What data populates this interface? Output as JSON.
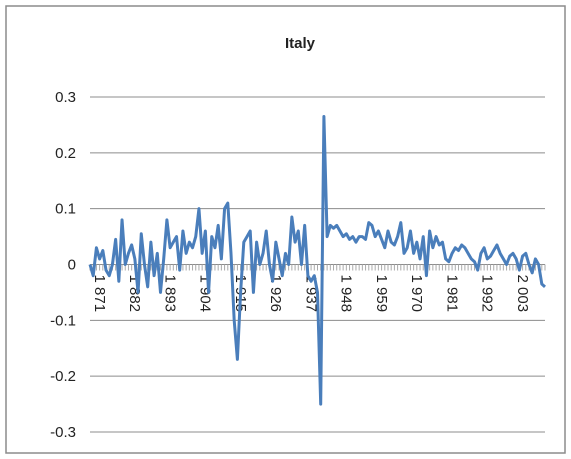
{
  "chart_data": {
    "type": "line",
    "title": "Italy",
    "categories": [
      "1 871",
      null,
      null,
      null,
      null,
      null,
      null,
      null,
      null,
      null,
      null,
      "1 882",
      null,
      null,
      null,
      null,
      null,
      null,
      null,
      null,
      null,
      null,
      "1 893",
      null,
      null,
      null,
      null,
      null,
      null,
      null,
      null,
      null,
      null,
      "1 904",
      null,
      null,
      null,
      null,
      null,
      null,
      null,
      null,
      null,
      null,
      "1 915",
      null,
      null,
      null,
      null,
      null,
      null,
      null,
      null,
      null,
      null,
      "1 926",
      null,
      null,
      null,
      null,
      null,
      null,
      null,
      null,
      null,
      null,
      "1 937",
      null,
      null,
      null,
      null,
      null,
      null,
      null,
      null,
      null,
      null,
      "1 948",
      null,
      null,
      null,
      null,
      null,
      null,
      null,
      null,
      null,
      null,
      "1 959",
      null,
      null,
      null,
      null,
      null,
      null,
      null,
      null,
      null,
      null,
      "1 970",
      null,
      null,
      null,
      null,
      null,
      null,
      null,
      null,
      null,
      null,
      "1 981",
      null,
      null,
      null,
      null,
      null,
      null,
      null,
      null,
      null,
      null,
      "1 992",
      null,
      null,
      null,
      null,
      null,
      null,
      null,
      null,
      null,
      null,
      "2 003",
      null,
      null,
      null,
      null,
      null,
      null,
      null,
      null,
      null,
      null
    ],
    "values": [
      0.0,
      -0.02,
      0.03,
      0.01,
      0.025,
      -0.01,
      -0.02,
      0.0,
      0.045,
      -0.03,
      0.08,
      0.0,
      0.02,
      0.035,
      0.01,
      -0.05,
      0.055,
      0.0,
      -0.04,
      0.04,
      -0.02,
      0.02,
      -0.05,
      0.01,
      0.08,
      0.03,
      0.04,
      0.05,
      -0.01,
      0.06,
      0.02,
      0.04,
      0.03,
      0.05,
      0.1,
      0.02,
      0.06,
      -0.05,
      0.05,
      0.03,
      0.07,
      0.01,
      0.1,
      0.11,
      0.02,
      -0.1,
      -0.17,
      -0.05,
      0.04,
      0.05,
      0.06,
      -0.05,
      0.04,
      0.0,
      0.02,
      0.06,
      0.0,
      -0.03,
      0.04,
      0.01,
      -0.02,
      0.02,
      0.0,
      0.085,
      0.04,
      0.06,
      0.0,
      0.07,
      -0.02,
      -0.03,
      -0.02,
      -0.05,
      -0.25,
      0.265,
      0.05,
      0.07,
      0.065,
      0.07,
      0.06,
      0.05,
      0.055,
      0.045,
      0.05,
      0.04,
      0.05,
      0.05,
      0.045,
      0.075,
      0.07,
      0.05,
      0.06,
      0.045,
      0.03,
      0.06,
      0.04,
      0.035,
      0.05,
      0.075,
      0.02,
      0.03,
      0.06,
      0.02,
      0.04,
      0.01,
      0.05,
      -0.02,
      0.06,
      0.03,
      0.05,
      0.035,
      0.04,
      0.01,
      0.005,
      0.02,
      0.03,
      0.025,
      0.035,
      0.03,
      0.02,
      0.01,
      0.005,
      -0.01,
      0.02,
      0.03,
      0.01,
      0.015,
      0.025,
      0.035,
      0.02,
      0.01,
      0.0,
      0.015,
      0.02,
      0.01,
      -0.01,
      0.015,
      0.02,
      0.0,
      -0.015,
      0.01,
      0.0,
      -0.035,
      -0.04
    ],
    "color": "#4a7ebb",
    "ylim": [
      -0.3,
      0.3
    ],
    "yticks": [
      -0.3,
      -0.2,
      -0.1,
      0,
      0.1,
      0.2,
      0.3
    ],
    "grid": true
  }
}
